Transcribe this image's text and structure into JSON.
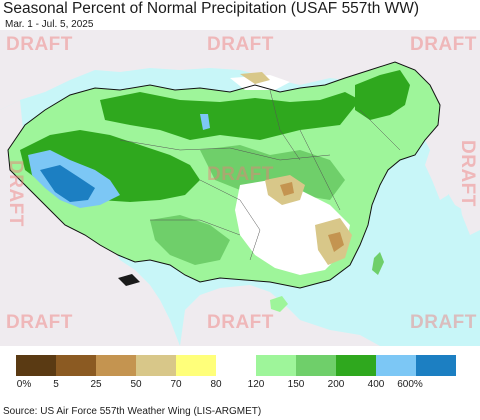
{
  "title": "Seasonal Percent of Normal Precipitation (USAF 557th WW)",
  "subtitle": "Mar. 1 - Jul. 5, 2025",
  "watermark": "DRAFT",
  "legend": {
    "colors": [
      "#5a3a13",
      "#8b5a22",
      "#c49450",
      "#d8c789",
      "#ffff7a",
      "#ffffff",
      "#9ef59a",
      "#6fcf6a",
      "#2fa81e",
      "#7cc7f5",
      "#1c7fc2"
    ],
    "labels": [
      "0%",
      "5",
      "25",
      "50",
      "70",
      "80",
      "120",
      "150",
      "200",
      "400",
      "600%"
    ]
  },
  "source": "Source: US Air Force 557th Weather Wing (LIS-ARGMET)",
  "map_colors": {
    "ocean": "#c8f6f8",
    "outside_land": "#efebef",
    "normal": "#ffffff",
    "wet_light": "#9ef59a",
    "wet_mid": "#6fcf6a",
    "wet_heavy": "#2fa81e",
    "very_wet": "#7cc7f5",
    "extreme_wet": "#1c7fc2",
    "dry_light": "#d8c789",
    "dry_mid": "#c49450",
    "drought": "#1a1a1a"
  }
}
